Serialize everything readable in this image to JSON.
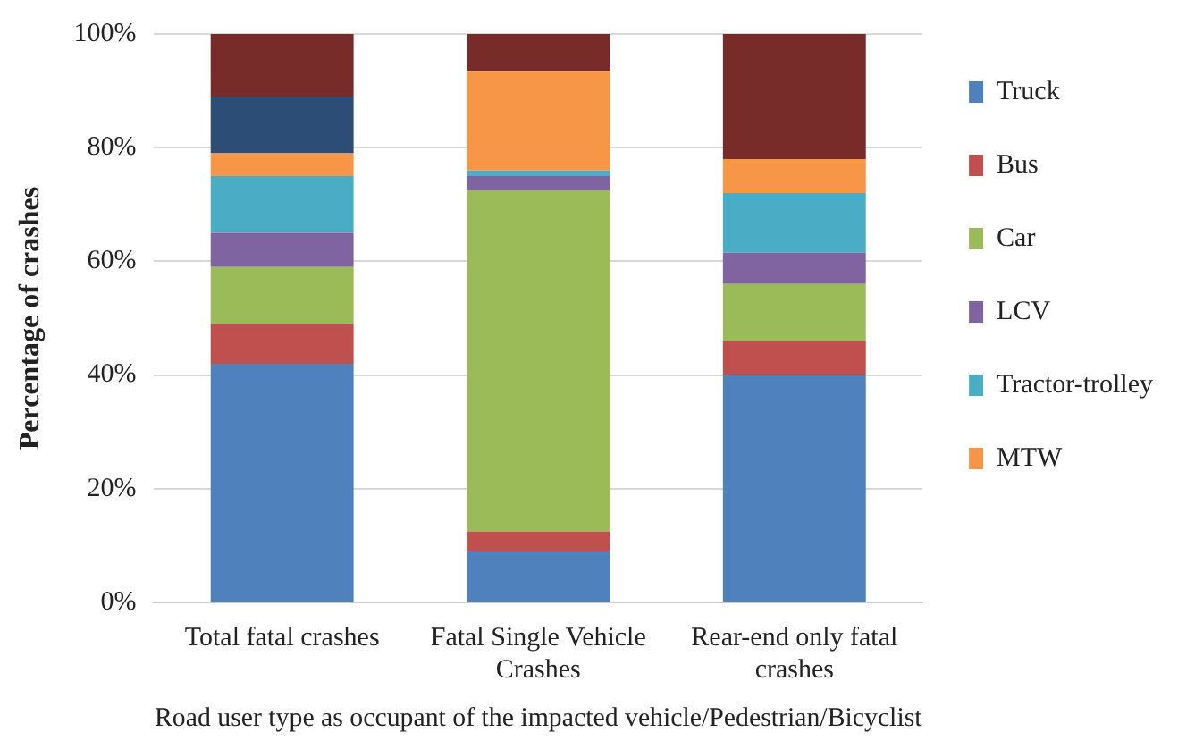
{
  "chart_data": {
    "type": "bar",
    "stacked": true,
    "xlabel": "Road user type as occupant of the impacted vehicle/Pedestrian/Bicyclist",
    "ylabel": "Percentage of crashes",
    "categories": [
      "Total fatal crashes",
      "Fatal Single Vehicle Crashes",
      "Rear-end only fatal crashes"
    ],
    "series": [
      {
        "name": "Truck",
        "color": "#4f81bd",
        "values": [
          42,
          9,
          40
        ]
      },
      {
        "name": "Bus",
        "color": "#c0504d",
        "values": [
          7,
          3.5,
          6
        ]
      },
      {
        "name": "Car",
        "color": "#9bbb59",
        "values": [
          10,
          60,
          10
        ]
      },
      {
        "name": "LCV",
        "color": "#8064a2",
        "values": [
          6,
          2.5,
          5.5
        ]
      },
      {
        "name": "Tractor-trolley",
        "color": "#4bacc6",
        "values": [
          10,
          1,
          10.5
        ]
      },
      {
        "name": "MTW",
        "color": "#f79646",
        "values": [
          4,
          17.5,
          6
        ]
      },
      {
        "color": "#2c4d75",
        "values": [
          10,
          0,
          0
        ]
      },
      {
        "color": "#772c2a",
        "values": [
          11,
          6.5,
          22
        ]
      }
    ],
    "ylim": [
      0,
      100
    ],
    "yticks": [
      {
        "value": 0,
        "label": "0%"
      },
      {
        "value": 20,
        "label": "20%"
      },
      {
        "value": 40,
        "label": "40%"
      },
      {
        "value": 60,
        "label": "60%"
      },
      {
        "value": 80,
        "label": "80%"
      },
      {
        "value": 100,
        "label": "100%"
      }
    ],
    "grid": "y",
    "legend": "right"
  }
}
